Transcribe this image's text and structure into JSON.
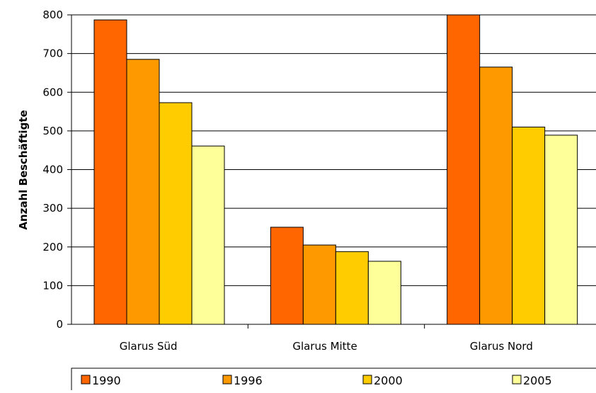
{
  "chart_data": {
    "type": "bar",
    "title": "",
    "xlabel": "",
    "ylabel": "Anzahl Beschäftigte",
    "categories": [
      "Glarus Süd",
      "Glarus Mitte",
      "Glarus Nord"
    ],
    "series": [
      {
        "name": "1990",
        "values": [
          787,
          251,
          800
        ],
        "color": "#ff6600"
      },
      {
        "name": "1996",
        "values": [
          685,
          205,
          665
        ],
        "color": "#ff9900"
      },
      {
        "name": "2000",
        "values": [
          573,
          188,
          510
        ],
        "color": "#ffcc00"
      },
      {
        "name": "2005",
        "values": [
          461,
          163,
          489
        ],
        "color": "#ffff99"
      }
    ],
    "ylim": [
      0,
      800
    ],
    "yticks": [
      "0",
      "100",
      "200",
      "300",
      "400",
      "500",
      "600",
      "700",
      "800"
    ],
    "grid": true,
    "legend_position": "bottom"
  }
}
